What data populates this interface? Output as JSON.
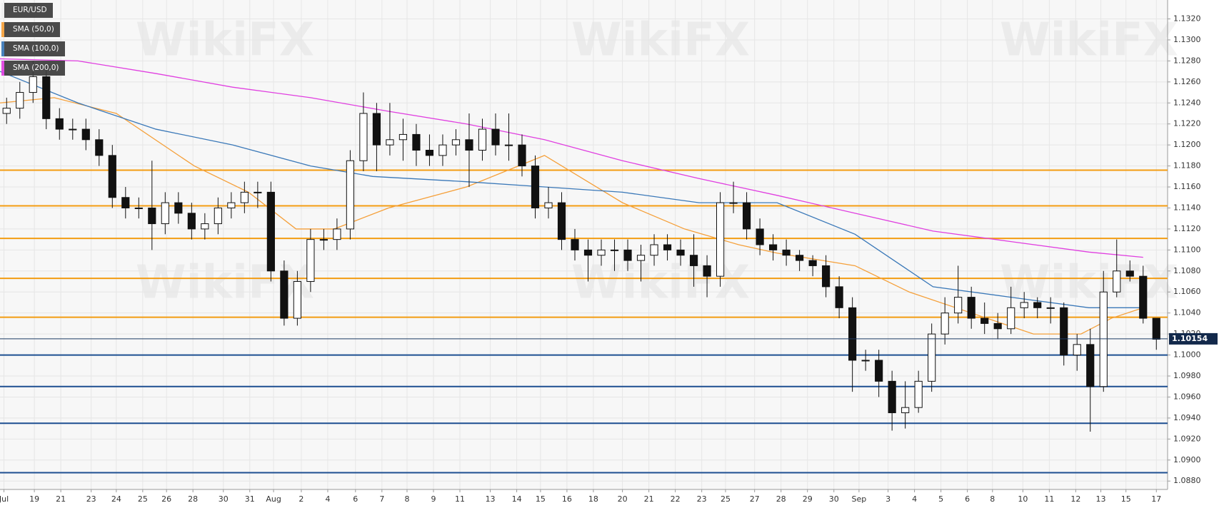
{
  "chart_data": {
    "type": "candlestick",
    "watermark": "WikiFX",
    "candles": {
      "name": "EUR/USD",
      "color": "#111111",
      "up_color": "#ffffff",
      "x": [
        0.5,
        1.5,
        2.5,
        3.5,
        4.5,
        5.5,
        6.5,
        7.5,
        8.5,
        9.5,
        10.5,
        11.5,
        12.5,
        13.5,
        14.5,
        15.5,
        16.5,
        17.5,
        18.5,
        19.5,
        20.5,
        21.5,
        22.5,
        23.5,
        24.5,
        25.5,
        26.5,
        27.5,
        28.5,
        29.5,
        30.5,
        31.5,
        32.5,
        33.5,
        34.5,
        35.5,
        36.5,
        37.5,
        38.5,
        39.5,
        40.5,
        41.5,
        42.5,
        43.5,
        44.5,
        45.5,
        46.5,
        47.5,
        48.5,
        49.5,
        50.5,
        51.5,
        52.5,
        53.5,
        54.5,
        55.5,
        56.5,
        57.5,
        58.5,
        59.5,
        60.5,
        61.5,
        62.5,
        63.5,
        64.5,
        65.5,
        66.5,
        67.5,
        68.5,
        69.5,
        70.5,
        71.5,
        72.5,
        73.5,
        74.5,
        75.5,
        76.5,
        77.5,
        78.5,
        79.5,
        80.5,
        81.5,
        82.5,
        83.5,
        84.5,
        85.5,
        86.5,
        87.5
      ],
      "open": [
        1.123,
        1.1235,
        1.125,
        1.1265,
        1.1225,
        1.1215,
        1.1215,
        1.1205,
        1.119,
        1.115,
        1.114,
        1.114,
        1.1125,
        1.1145,
        1.1135,
        1.112,
        1.1125,
        1.114,
        1.1145,
        1.1155,
        1.1155,
        1.108,
        1.1035,
        1.107,
        1.111,
        1.111,
        1.112,
        1.1185,
        1.123,
        1.12,
        1.1205,
        1.121,
        1.1195,
        1.119,
        1.12,
        1.1205,
        1.1195,
        1.1215,
        1.12,
        1.12,
        1.118,
        1.114,
        1.1145,
        1.111,
        1.11,
        1.1095,
        1.11,
        1.11,
        1.109,
        1.1095,
        1.1105,
        1.11,
        1.1095,
        1.1085,
        1.1075,
        1.1145,
        1.1145,
        1.112,
        1.1105,
        1.11,
        1.1095,
        1.109,
        1.1085,
        1.1065,
        1.1045,
        1.0995,
        1.0995,
        1.0975,
        1.0945,
        1.095,
        1.0975,
        1.102,
        1.104,
        1.1055,
        1.1035,
        1.103,
        1.1025,
        1.1045,
        1.105,
        1.1045,
        1.1045,
        1.1,
        1.101,
        1.097,
        1.106,
        1.108,
        1.1075,
        1.1035
      ],
      "high": [
        1.1245,
        1.126,
        1.128,
        1.1275,
        1.1235,
        1.1225,
        1.1225,
        1.1215,
        1.12,
        1.116,
        1.115,
        1.1185,
        1.1155,
        1.1155,
        1.1145,
        1.1135,
        1.115,
        1.1155,
        1.1165,
        1.1165,
        1.1165,
        1.109,
        1.108,
        1.112,
        1.112,
        1.113,
        1.1195,
        1.125,
        1.124,
        1.124,
        1.1225,
        1.122,
        1.121,
        1.121,
        1.1215,
        1.123,
        1.1225,
        1.123,
        1.123,
        1.121,
        1.119,
        1.116,
        1.1155,
        1.112,
        1.111,
        1.111,
        1.111,
        1.111,
        1.1105,
        1.1115,
        1.1115,
        1.111,
        1.1115,
        1.1095,
        1.1155,
        1.1165,
        1.1155,
        1.113,
        1.1115,
        1.111,
        1.11,
        1.1095,
        1.1095,
        1.1075,
        1.1055,
        1.1005,
        1.1005,
        1.0985,
        1.0975,
        1.0985,
        1.103,
        1.1055,
        1.1085,
        1.1065,
        1.105,
        1.104,
        1.1065,
        1.106,
        1.1055,
        1.1055,
        1.105,
        1.102,
        1.1025,
        1.108,
        1.111,
        1.109,
        1.1085,
        1.1035
      ],
      "low": [
        1.122,
        1.1225,
        1.124,
        1.1215,
        1.1205,
        1.1205,
        1.1195,
        1.118,
        1.114,
        1.113,
        1.113,
        1.11,
        1.1115,
        1.1125,
        1.111,
        1.111,
        1.1115,
        1.113,
        1.1135,
        1.114,
        1.107,
        1.1028,
        1.1028,
        1.106,
        1.11,
        1.11,
        1.111,
        1.1175,
        1.1175,
        1.119,
        1.1185,
        1.118,
        1.118,
        1.118,
        1.119,
        1.116,
        1.1185,
        1.119,
        1.1185,
        1.117,
        1.113,
        1.113,
        1.11,
        1.109,
        1.107,
        1.1085,
        1.108,
        1.108,
        1.107,
        1.1085,
        1.109,
        1.1085,
        1.1065,
        1.1055,
        1.1065,
        1.1135,
        1.111,
        1.1095,
        1.109,
        1.1085,
        1.108,
        1.1075,
        1.1055,
        1.1035,
        1.0965,
        1.0985,
        1.096,
        1.0928,
        1.093,
        1.0945,
        1.0965,
        1.101,
        1.103,
        1.1025,
        1.102,
        1.1015,
        1.102,
        1.1035,
        1.1035,
        1.103,
        1.099,
        1.0985,
        1.0927,
        1.0965,
        1.1055,
        1.107,
        1.103,
        1.1005
      ],
      "close": [
        1.1235,
        1.125,
        1.1265,
        1.1225,
        1.1215,
        1.1215,
        1.1205,
        1.119,
        1.115,
        1.114,
        1.114,
        1.1125,
        1.1145,
        1.1135,
        1.112,
        1.1125,
        1.114,
        1.1145,
        1.1155,
        1.1155,
        1.108,
        1.1035,
        1.107,
        1.111,
        1.111,
        1.112,
        1.1185,
        1.123,
        1.12,
        1.1205,
        1.121,
        1.1195,
        1.119,
        1.12,
        1.1205,
        1.1195,
        1.1215,
        1.12,
        1.12,
        1.118,
        1.114,
        1.1145,
        1.111,
        1.11,
        1.1095,
        1.11,
        1.11,
        1.109,
        1.1095,
        1.1105,
        1.11,
        1.1095,
        1.1085,
        1.1075,
        1.1145,
        1.1145,
        1.112,
        1.1105,
        1.11,
        1.1095,
        1.109,
        1.1085,
        1.1065,
        1.1045,
        1.0995,
        1.0995,
        1.0975,
        1.0945,
        1.095,
        1.0975,
        1.102,
        1.104,
        1.1055,
        1.1035,
        1.103,
        1.1025,
        1.1045,
        1.105,
        1.1045,
        1.1045,
        1.1,
        1.101,
        1.097,
        1.106,
        1.108,
        1.1075,
        1.1035,
        1.1015
      ]
    },
    "series": [
      {
        "name": "SMA (50,0)",
        "color": "#f5a03a",
        "x": [
          0,
          4.1,
          8.8,
          14.7,
          18.8,
          22.4,
          25.3,
          29.4,
          35.3,
          41.2,
          47.1,
          51.8,
          55.9,
          58.8,
          64.7,
          68.8,
          73.5,
          78.2,
          81.8,
          84.1,
          86.5
        ],
        "values": [
          1.124,
          1.1245,
          1.123,
          1.118,
          1.1155,
          1.112,
          1.112,
          1.114,
          1.116,
          1.119,
          1.1145,
          1.112,
          1.1105,
          1.1097,
          1.1085,
          1.106,
          1.104,
          1.102,
          1.102,
          1.1035,
          1.1045
        ]
      },
      {
        "name": "SMA (100,0)",
        "color": "#3a78b8",
        "x": [
          0,
          5.9,
          11.8,
          17.6,
          23.5,
          28.2,
          35.3,
          41.2,
          47.1,
          52.9,
          58.8,
          64.7,
          70.6,
          76.5,
          82.4,
          86.5
        ],
        "values": [
          1.127,
          1.124,
          1.1215,
          1.12,
          1.118,
          1.117,
          1.1165,
          1.116,
          1.1155,
          1.1145,
          1.1145,
          1.1115,
          1.1065,
          1.1055,
          1.1045,
          1.1045
        ]
      },
      {
        "name": "SMA (200,0)",
        "color": "#e03fe0",
        "x": [
          0,
          5.9,
          11.8,
          17.6,
          23.5,
          29.4,
          35.3,
          41.2,
          47.1,
          52.9,
          58.8,
          64.7,
          70.6,
          76.5,
          82.4,
          86.5
        ],
        "values": [
          1.1282,
          1.128,
          1.1268,
          1.1255,
          1.1245,
          1.1232,
          1.122,
          1.1205,
          1.1185,
          1.1168,
          1.1152,
          1.1135,
          1.1118,
          1.1108,
          1.1098,
          1.1093
        ]
      }
    ],
    "levels": [
      {
        "value": 1.1176,
        "color": "#f39c12"
      },
      {
        "value": 1.1142,
        "color": "#f39c12"
      },
      {
        "value": 1.1111,
        "color": "#f39c12"
      },
      {
        "value": 1.1073,
        "color": "#f39c12"
      },
      {
        "value": 1.1036,
        "color": "#f39c12"
      },
      {
        "value": 1.1,
        "color": "#1d4f91"
      },
      {
        "value": 1.097,
        "color": "#1d4f91"
      },
      {
        "value": 1.0935,
        "color": "#1d4f91"
      },
      {
        "value": 1.0888,
        "color": "#1d4f91"
      }
    ],
    "last_price": {
      "value": 1.10154,
      "label": "1.10154"
    },
    "xlim": [
      0,
      88.35
    ],
    "xticks": [
      {
        "value": 0.3,
        "label": "Jul"
      },
      {
        "value": 2.6,
        "label": "19"
      },
      {
        "value": 4.6,
        "label": "21"
      },
      {
        "value": 6.9,
        "label": "23"
      },
      {
        "value": 8.8,
        "label": "24"
      },
      {
        "value": 10.8,
        "label": "25"
      },
      {
        "value": 12.6,
        "label": "26"
      },
      {
        "value": 14.6,
        "label": "28"
      },
      {
        "value": 16.9,
        "label": "30"
      },
      {
        "value": 18.9,
        "label": "31"
      },
      {
        "value": 20.7,
        "label": "Aug"
      },
      {
        "value": 22.8,
        "label": "2"
      },
      {
        "value": 24.8,
        "label": "4"
      },
      {
        "value": 26.9,
        "label": "6"
      },
      {
        "value": 28.9,
        "label": "7"
      },
      {
        "value": 30.8,
        "label": "8"
      },
      {
        "value": 32.8,
        "label": "9"
      },
      {
        "value": 34.8,
        "label": "11"
      },
      {
        "value": 37.1,
        "label": "13"
      },
      {
        "value": 39.1,
        "label": "14"
      },
      {
        "value": 40.9,
        "label": "15"
      },
      {
        "value": 42.9,
        "label": "16"
      },
      {
        "value": 44.9,
        "label": "18"
      },
      {
        "value": 47.1,
        "label": "20"
      },
      {
        "value": 49.1,
        "label": "21"
      },
      {
        "value": 51.1,
        "label": "22"
      },
      {
        "value": 53.1,
        "label": "23"
      },
      {
        "value": 54.9,
        "label": "25"
      },
      {
        "value": 57.1,
        "label": "27"
      },
      {
        "value": 59.1,
        "label": "28"
      },
      {
        "value": 61.1,
        "label": "29"
      },
      {
        "value": 63.1,
        "label": "30"
      },
      {
        "value": 65.0,
        "label": "Sep"
      },
      {
        "value": 67.2,
        "label": "3"
      },
      {
        "value": 69.2,
        "label": "4"
      },
      {
        "value": 71.2,
        "label": "5"
      },
      {
        "value": 73.2,
        "label": "6"
      },
      {
        "value": 75.1,
        "label": "8"
      },
      {
        "value": 77.4,
        "label": "10"
      },
      {
        "value": 79.4,
        "label": "11"
      },
      {
        "value": 81.4,
        "label": "12"
      },
      {
        "value": 83.3,
        "label": "13"
      },
      {
        "value": 85.2,
        "label": "15"
      },
      {
        "value": 87.5,
        "label": "17"
      }
    ],
    "ylim": [
      1.0872,
      1.1338
    ],
    "yticks": [
      {
        "value": 1.088,
        "label": "1.0880"
      },
      {
        "value": 1.09,
        "label": "1.0900"
      },
      {
        "value": 1.092,
        "label": "1.0920"
      },
      {
        "value": 1.094,
        "label": "1.0940"
      },
      {
        "value": 1.096,
        "label": "1.0960"
      },
      {
        "value": 1.098,
        "label": "1.0980"
      },
      {
        "value": 1.1,
        "label": "1.1000"
      },
      {
        "value": 1.102,
        "label": "1.1020"
      },
      {
        "value": 1.104,
        "label": "1.1040"
      },
      {
        "value": 1.106,
        "label": "1.1060"
      },
      {
        "value": 1.108,
        "label": "1.1080"
      },
      {
        "value": 1.11,
        "label": "1.1100"
      },
      {
        "value": 1.112,
        "label": "1.1120"
      },
      {
        "value": 1.114,
        "label": "1.1140"
      },
      {
        "value": 1.116,
        "label": "1.1160"
      },
      {
        "value": 1.118,
        "label": "1.1180"
      },
      {
        "value": 1.12,
        "label": "1.1200"
      },
      {
        "value": 1.122,
        "label": "1.1220"
      },
      {
        "value": 1.124,
        "label": "1.1240"
      },
      {
        "value": 1.126,
        "label": "1.1260"
      },
      {
        "value": 1.128,
        "label": "1.1280"
      },
      {
        "value": 1.13,
        "label": "1.1300"
      },
      {
        "value": 1.132,
        "label": "1.1320"
      }
    ],
    "grid": true
  }
}
